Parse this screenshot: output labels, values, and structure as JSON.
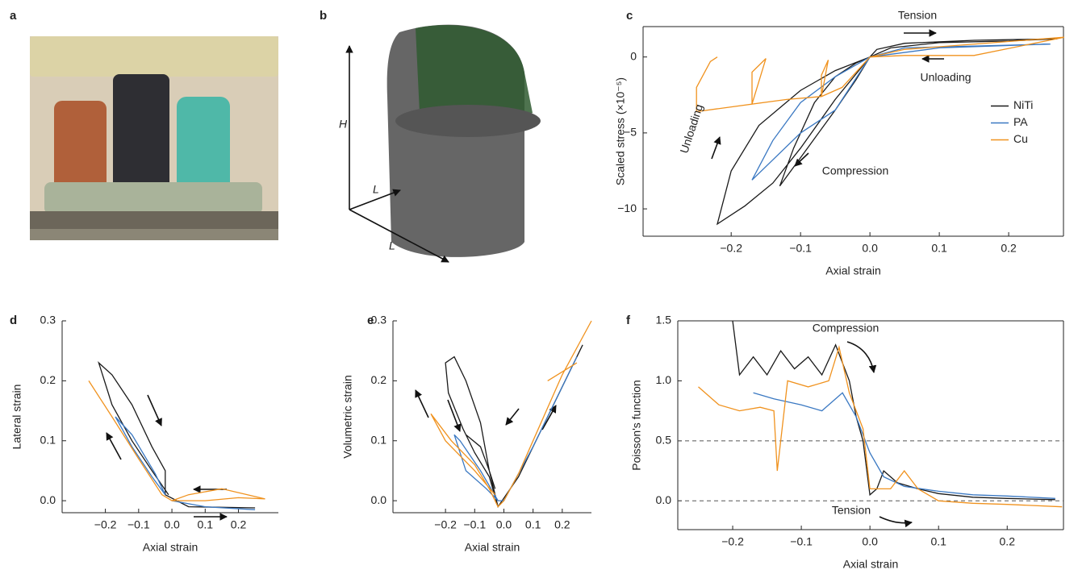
{
  "panel_labels": [
    "a",
    "b",
    "c",
    "d",
    "e",
    "f"
  ],
  "diagram_labels": [
    "H",
    "L",
    "L"
  ],
  "chart_data": [
    {
      "type": "line",
      "xlabel": "Axial strain",
      "ylabel": "Scaled stress (×10⁻⁵)",
      "xlim": [
        -0.327,
        0.279
      ],
      "ylim": [
        -11.8,
        2
      ],
      "frame": true,
      "legend_loc": "center right",
      "xticks": [
        {
          "value": -0.2,
          "label": "−0.2"
        },
        {
          "value": -0.1,
          "label": "−0.1"
        },
        {
          "value": 0,
          "label": "0.0"
        },
        0.1,
        0.2
      ],
      "yticks": [
        {
          "value": -10,
          "label": "−10"
        },
        {
          "value": -5,
          "label": "−5"
        },
        0
      ],
      "annotations": [
        "Tension",
        "Unloading",
        "Unloading",
        "Compression"
      ],
      "series": [
        {
          "name": "NiTi",
          "color": "#1a1a1a",
          "x": [
            0,
            -0.02,
            -0.05,
            -0.09,
            -0.13,
            -0.11,
            -0.08,
            -0.05,
            -0.02,
            0,
            -0.05,
            -0.1,
            -0.14,
            -0.18,
            -0.22,
            -0.2,
            -0.16,
            -0.1,
            -0.05,
            0,
            0.01,
            0.05,
            0.15,
            0.27,
            0.2,
            0.1,
            0.03,
            0
          ],
          "values": [
            0,
            -1.5,
            -3.5,
            -6,
            -8.5,
            -6,
            -3,
            -1.3,
            -0.4,
            0,
            -2.8,
            -6,
            -8.3,
            -9.8,
            -11,
            -7.5,
            -4.5,
            -2.2,
            -0.9,
            0,
            0.5,
            0.9,
            1.1,
            1.2,
            1.05,
            0.95,
            0.6,
            0
          ]
        },
        {
          "name": "PA",
          "color": "#3a78c2",
          "x": [
            0,
            -0.05,
            -0.1,
            -0.17,
            -0.14,
            -0.1,
            -0.05,
            0,
            0.05,
            0.26,
            0.1,
            0
          ],
          "values": [
            0,
            -3.5,
            -5,
            -8.1,
            -5.5,
            -3,
            -1.3,
            0,
            0.6,
            0.85,
            0.6,
            0
          ]
        },
        {
          "name": "Cu",
          "color": "#f0921e",
          "x": [
            0,
            -0.04,
            -0.07,
            -0.07,
            -0.06,
            -0.07,
            -0.12,
            -0.17,
            -0.17,
            -0.15,
            -0.17,
            -0.25,
            -0.25,
            -0.23,
            -0.22,
            null,
            0,
            0.05,
            0.28,
            0.15,
            0.05,
            0
          ],
          "values": [
            0,
            -2,
            -2.6,
            -1.2,
            -0.2,
            -2.6,
            -2.8,
            -3.1,
            -1,
            -0.1,
            -3.1,
            -3.6,
            -2,
            -0.3,
            0,
            null,
            0,
            0.5,
            1.3,
            0.1,
            0.1,
            0
          ]
        }
      ]
    },
    {
      "type": "line",
      "xlabel": "Axial strain",
      "ylabel": "Lateral strain",
      "xlim": [
        -0.33,
        0.32
      ],
      "ylim": [
        -0.02,
        0.3
      ],
      "frame": false,
      "xticks": [
        {
          "value": -0.2,
          "label": "−0.2"
        },
        {
          "value": -0.1,
          "label": "−0.1"
        },
        {
          "value": 0,
          "label": "0.0"
        },
        0.1,
        0.2
      ],
      "yticks": [
        {
          "value": 0,
          "label": "0.0"
        },
        0.1,
        0.2,
        0.3
      ],
      "series": [
        {
          "color": "#1a1a1a",
          "x": [
            -0.01,
            -0.06,
            -0.12,
            -0.18,
            -0.22,
            -0.18,
            -0.12,
            -0.06,
            -0.02,
            -0.02,
            0.05,
            0.25
          ],
          "values": [
            0.01,
            0.05,
            0.1,
            0.16,
            0.23,
            0.21,
            0.16,
            0.09,
            0.05,
            0.01,
            -0.01,
            -0.012
          ]
        },
        {
          "color": "#3a78c2",
          "x": [
            -0.17,
            -0.12,
            -0.06,
            -0.02,
            -0.05,
            -0.12,
            -0.17,
            null,
            0,
            0.1,
            0.25
          ],
          "values": [
            0.14,
            0.09,
            0.04,
            0.01,
            0.045,
            0.11,
            0.14,
            null,
            0,
            -0.01,
            -0.015
          ]
        },
        {
          "color": "#f0921e",
          "x": [
            -0.25,
            -0.18,
            -0.1,
            -0.03,
            0,
            0.1,
            0.2,
            0.28,
            0.15,
            0.05,
            0
          ],
          "values": [
            0.2,
            0.14,
            0.07,
            0.01,
            0,
            0,
            0.005,
            0.003,
            0.02,
            0.01,
            0
          ]
        }
      ]
    },
    {
      "type": "line",
      "xlabel": "Axial strain",
      "ylabel": "Volumetric strain",
      "xlim": [
        -0.38,
        0.3
      ],
      "ylim": [
        -0.02,
        0.3
      ],
      "frame": false,
      "xticks": [
        {
          "value": -0.2,
          "label": "−0.2"
        },
        {
          "value": -0.1,
          "label": "−0.1"
        },
        {
          "value": 0,
          "label": "0.0"
        },
        0.1,
        0.2
      ],
      "yticks": [
        {
          "value": 0,
          "label": "0.0"
        },
        0.1,
        0.2,
        0.3
      ],
      "series": [
        {
          "color": "#1a1a1a",
          "x": [
            0.27,
            0.15,
            0.05,
            -0.02,
            -0.05,
            -0.08,
            -0.13,
            -0.17,
            -0.2,
            -0.19,
            -0.14,
            -0.1,
            -0.05,
            -0.02,
            null,
            -0.13,
            -0.08,
            -0.05,
            -0.03
          ],
          "values": [
            0.26,
            0.14,
            0.04,
            -0.01,
            0.05,
            0.13,
            0.2,
            0.24,
            0.23,
            0.18,
            0.12,
            0.08,
            0.04,
            -0.01,
            null,
            0.11,
            0.09,
            0.05,
            0.02
          ]
        },
        {
          "color": "#3a78c2",
          "x": [
            0.25,
            0.1,
            0,
            -0.02,
            -0.08,
            -0.15,
            -0.17,
            -0.13,
            -0.06,
            -0.02
          ],
          "values": [
            0.24,
            0.09,
            0,
            0,
            0.05,
            0.1,
            0.11,
            0.05,
            0.02,
            0
          ]
        },
        {
          "color": "#f0921e",
          "x": [
            0.3,
            0.2,
            0.1,
            0.05,
            0,
            -0.02,
            -0.05,
            -0.1,
            -0.18,
            -0.25,
            -0.2,
            -0.1,
            -0.03,
            null,
            0.15,
            0.25
          ],
          "values": [
            0.3,
            0.21,
            0.1,
            0.045,
            0,
            -0.01,
            0.02,
            0.06,
            0.1,
            0.145,
            0.1,
            0.05,
            0.01,
            null,
            0.2,
            0.23
          ]
        }
      ]
    },
    {
      "type": "line",
      "xlabel": "Axial strain",
      "ylabel": "Poisson's function",
      "xlim": [
        -0.28,
        0.282
      ],
      "ylim": [
        -0.24,
        1.5
      ],
      "frame": true,
      "hlines": [
        0,
        0.5
      ],
      "xticks": [
        {
          "value": -0.2,
          "label": "−0.2"
        },
        {
          "value": -0.1,
          "label": "−0.1"
        },
        {
          "value": 0,
          "label": "0.0"
        },
        0.1,
        0.2
      ],
      "yticks": [
        {
          "value": 0,
          "label": "0.0"
        },
        0.5,
        {
          "value": 1,
          "label": "1.0"
        },
        1.5
      ],
      "annotations": [
        "Compression",
        "Tension"
      ],
      "series": [
        {
          "color": "#1a1a1a",
          "x": [
            -0.2,
            -0.19,
            -0.17,
            -0.15,
            -0.13,
            -0.11,
            -0.09,
            -0.07,
            -0.05,
            -0.03,
            -0.02,
            -0.01,
            0,
            0.01,
            0.02,
            0.04,
            0.07,
            0.1,
            0.15,
            0.2,
            0.27
          ],
          "values": [
            1.5,
            1.05,
            1.2,
            1.05,
            1.25,
            1.1,
            1.2,
            1.05,
            1.3,
            1,
            0.7,
            0.5,
            0.05,
            0.1,
            0.25,
            0.15,
            0.1,
            0.06,
            0.03,
            0.02,
            0.01
          ]
        },
        {
          "color": "#3a78c2",
          "x": [
            -0.17,
            -0.14,
            -0.1,
            -0.07,
            -0.04,
            -0.02,
            0,
            0.02,
            0.05,
            0.1,
            0.15,
            0.2,
            0.27
          ],
          "values": [
            0.9,
            0.85,
            0.8,
            0.75,
            0.9,
            0.7,
            0.4,
            0.2,
            0.12,
            0.08,
            0.05,
            0.04,
            0.02
          ]
        },
        {
          "color": "#f0921e",
          "x": [
            -0.25,
            -0.22,
            -0.19,
            -0.16,
            -0.14,
            -0.135,
            -0.12,
            -0.09,
            -0.06,
            -0.045,
            -0.03,
            -0.01,
            0,
            0.03,
            0.05,
            0.07,
            0.1,
            0.15,
            0.2,
            0.28
          ],
          "values": [
            0.95,
            0.8,
            0.75,
            0.78,
            0.75,
            0.25,
            1,
            0.95,
            1,
            1.28,
            0.9,
            0.6,
            0.1,
            0.1,
            0.25,
            0.1,
            0,
            -0.02,
            -0.03,
            -0.05
          ]
        }
      ]
    }
  ]
}
